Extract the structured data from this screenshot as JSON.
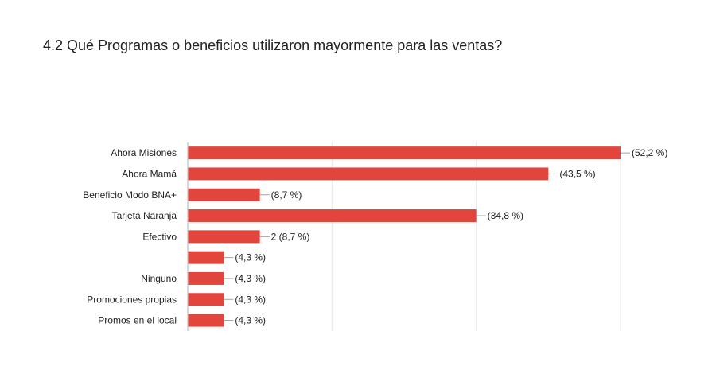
{
  "title": "4.2 Qué Programas o beneficios utilizaron mayormente para las ventas?",
  "colors": {
    "bar": "#e2453b",
    "grid": "#e6e6e6",
    "axis": "#bdbdbd",
    "connector": "#a0a0a0"
  },
  "chart_data": {
    "type": "bar",
    "orientation": "horizontal",
    "grid": true,
    "legend": "none",
    "xlim": [
      0,
      12
    ],
    "categories": [
      "Ahora Misiones",
      "Ahora Mamá",
      "Beneficio Modo BNA+",
      "Tarjeta Naranja",
      "Efectivo",
      "",
      "Ninguno",
      "Promociones propias",
      "Promos en el local"
    ],
    "values": [
      12,
      10,
      2,
      8,
      2,
      1,
      1,
      1,
      1
    ],
    "data_labels": [
      "(52,2 %)",
      "(43,5 %)",
      "(8,7 %)",
      "(34,8 %)",
      "2 (8,7 %)",
      "(4,3 %)",
      "(4,3 %)",
      "(4,3 %)",
      "(4,3 %)"
    ]
  }
}
